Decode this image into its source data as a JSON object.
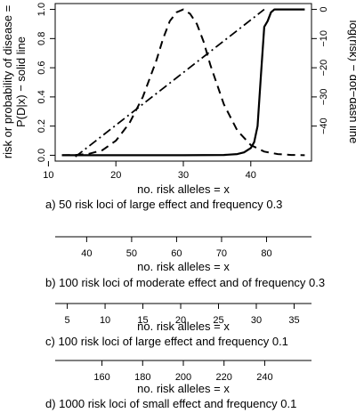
{
  "chart_data": {
    "type": "line",
    "main_panel": {
      "xlabel": "no. risk alleles = x",
      "ylabel_left_lines": [
        "risk or probability of disease =",
        "P(D|x) − solid line"
      ],
      "ylabel_right": "log(risk) − dot−dash line",
      "xlim": [
        11,
        49
      ],
      "ylim_left": [
        -0.04,
        1.04
      ],
      "ylim_right": [
        -52,
        2
      ],
      "x_ticks": [
        "10",
        "20",
        "30",
        "40"
      ],
      "x_tick_values": [
        10,
        20,
        30,
        40
      ],
      "y_ticks_left": [
        "0.0",
        "0.2",
        "0.4",
        "0.6",
        "0.8",
        "1.0"
      ],
      "y_tick_values_left": [
        0.0,
        0.2,
        0.4,
        0.6,
        0.8,
        1.0
      ],
      "y_ticks_right": [
        "0",
        "−10",
        "−20",
        "−30",
        "−40"
      ],
      "y_tick_values_right": [
        0,
        -10,
        -20,
        -30,
        -40
      ],
      "series": [
        {
          "style": "solid",
          "axis": "left",
          "x": [
            12,
            20,
            30,
            36,
            38,
            39,
            40,
            40.5,
            41,
            41.5,
            42,
            42.5,
            43,
            43.5,
            44,
            46,
            48
          ],
          "y": [
            0,
            0,
            0,
            0.002,
            0.008,
            0.02,
            0.05,
            0.09,
            0.2,
            0.55,
            0.88,
            0.92,
            0.98,
            1.0,
            1.0,
            1.0,
            1.0
          ]
        },
        {
          "style": "dash",
          "axis": "left",
          "x": [
            12,
            14,
            16,
            18,
            20,
            22,
            24,
            26,
            27,
            28,
            29,
            30,
            31,
            32,
            33,
            34,
            36,
            38,
            40,
            42,
            44,
            46,
            48
          ],
          "y": [
            0,
            0.002,
            0.01,
            0.035,
            0.1,
            0.22,
            0.4,
            0.65,
            0.8,
            0.92,
            0.98,
            1.0,
            0.97,
            0.9,
            0.78,
            0.62,
            0.35,
            0.17,
            0.07,
            0.025,
            0.008,
            0.002,
            0
          ]
        },
        {
          "style": "dotdash",
          "axis": "right",
          "x": [
            14,
            42
          ],
          "y": [
            -50.5,
            0
          ]
        }
      ],
      "caption": "a)  50   risk loci of large effect and frequency 0.3"
    },
    "axis_strips": [
      {
        "tick_values": [
          40,
          50,
          60,
          70,
          80
        ],
        "tick_labels": [
          "40",
          "50",
          "60",
          "70",
          "80"
        ],
        "xlim": [
          33,
          90
        ],
        "xlabel": "no. risk alleles = x",
        "caption": "b)  100   risk loci of moderate effect and of frequency 0.3"
      },
      {
        "tick_values": [
          5,
          10,
          15,
          20,
          25,
          30,
          35
        ],
        "tick_labels": [
          "5",
          "10",
          "15",
          "20",
          "25",
          "30",
          "35"
        ],
        "xlim": [
          3.4,
          37.3
        ],
        "xlabel": "no. risk alleles = x",
        "caption": "c) 100   risk loci of large effect and frequency 0.1"
      },
      {
        "tick_values": [
          160,
          180,
          200,
          220,
          240
        ],
        "tick_labels": [
          "160",
          "180",
          "200",
          "220",
          "240"
        ],
        "xlim": [
          137,
          263
        ],
        "xlabel": "no. risk alleles = x",
        "caption": "d) 1000 risk loci of small effect and frequency 0.1"
      }
    ]
  }
}
